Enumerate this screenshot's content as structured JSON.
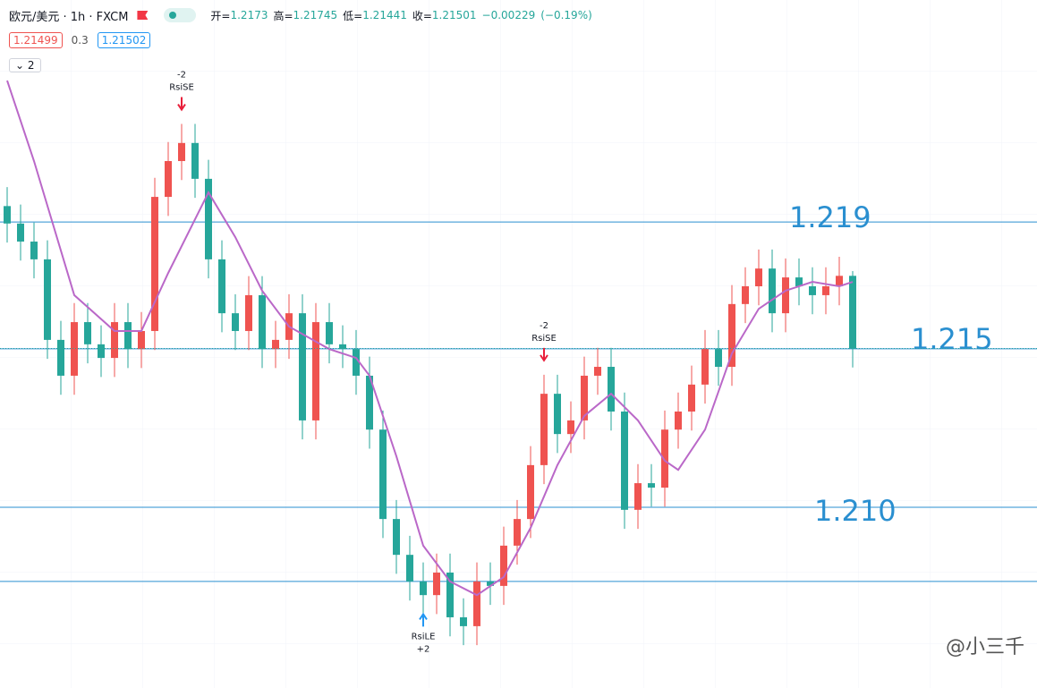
{
  "header": {
    "symbol": "欧元/美元 · 1h · FXCM",
    "open_label": "开=",
    "open": 1.2173,
    "high_label": "高=",
    "high": 1.21745,
    "low_label": "低=",
    "low": 1.21441,
    "close_label": "收=",
    "close": 1.21501,
    "change": {
      "value": -0.00229,
      "label": "−0.00229"
    },
    "change_pct": {
      "value": -0.19,
      "label": "(−0.19%)"
    },
    "bid": 1.21499,
    "spread": 0.3,
    "ask": 1.21502,
    "indicators": 2
  },
  "chart_data": {
    "type": "candlestick",
    "up_color": "#ef5350",
    "down_color": "#26a69a",
    "ylim": [
      1.2043,
      1.226
    ],
    "open": [
      1.2195,
      1.21895,
      1.21838,
      1.21782,
      1.21528,
      1.21415,
      1.21584,
      1.21514,
      1.21471,
      1.21584,
      1.21499,
      1.21556,
      1.21979,
      1.22092,
      1.22149,
      1.22036,
      1.21782,
      1.21612,
      1.21556,
      1.21669,
      1.21499,
      1.21528,
      1.21612,
      1.21274,
      1.21584,
      1.21514,
      1.21499,
      1.21415,
      1.21245,
      1.20963,
      1.2085,
      1.20766,
      1.20723,
      1.20794,
      1.20653,
      1.20625,
      1.20766,
      1.20752,
      1.20879,
      1.20963,
      1.21133,
      1.21358,
      1.21231,
      1.21274,
      1.21415,
      1.21443,
      1.21302,
      1.20992,
      1.21076,
      1.21062,
      1.21245,
      1.21302,
      1.21387,
      1.21499,
      1.21443,
      1.21641,
      1.21697,
      1.21753,
      1.21612,
      1.21725,
      1.21697,
      1.21669,
      1.21697,
      1.2173
    ],
    "high": [
      1.2201,
      1.21955,
      1.21898,
      1.21842,
      1.21588,
      1.21644,
      1.21644,
      1.21574,
      1.21644,
      1.21644,
      1.21616,
      1.22039,
      1.22152,
      1.22209,
      1.22209,
      1.22096,
      1.21842,
      1.21672,
      1.21729,
      1.21729,
      1.21588,
      1.21672,
      1.21672,
      1.21644,
      1.21644,
      1.21574,
      1.21559,
      1.21475,
      1.21305,
      1.21023,
      1.2091,
      1.20826,
      1.20854,
      1.20854,
      1.20713,
      1.20826,
      1.20826,
      1.20939,
      1.21023,
      1.21193,
      1.21418,
      1.21418,
      1.21334,
      1.21475,
      1.21503,
      1.21503,
      1.21362,
      1.21136,
      1.21136,
      1.21305,
      1.21362,
      1.21447,
      1.21559,
      1.21559,
      1.21701,
      1.21757,
      1.21813,
      1.21813,
      1.21785,
      1.21785,
      1.21757,
      1.21757,
      1.2179,
      1.21745
    ],
    "low": [
      1.21835,
      1.21778,
      1.21722,
      1.21468,
      1.21355,
      1.21355,
      1.21454,
      1.21411,
      1.21411,
      1.21439,
      1.21439,
      1.21496,
      1.21919,
      1.22032,
      1.21976,
      1.21722,
      1.21552,
      1.21496,
      1.21496,
      1.21439,
      1.21439,
      1.21468,
      1.21214,
      1.21214,
      1.21454,
      1.21439,
      1.21355,
      1.21185,
      1.20903,
      1.2079,
      1.20706,
      1.20663,
      1.20663,
      1.20593,
      1.20565,
      1.20565,
      1.20692,
      1.20692,
      1.20819,
      1.20903,
      1.21073,
      1.21171,
      1.21171,
      1.21214,
      1.21355,
      1.21242,
      1.20932,
      1.20932,
      1.21002,
      1.21002,
      1.21185,
      1.21242,
      1.21327,
      1.21383,
      1.21383,
      1.21581,
      1.21637,
      1.21552,
      1.21552,
      1.21637,
      1.21609,
      1.21609,
      1.21637,
      1.21441
    ],
    "close": [
      1.21895,
      1.21838,
      1.21782,
      1.21528,
      1.21415,
      1.21584,
      1.21514,
      1.21471,
      1.21584,
      1.21499,
      1.21556,
      1.21979,
      1.22092,
      1.22149,
      1.22036,
      1.21782,
      1.21612,
      1.21556,
      1.21669,
      1.21499,
      1.21528,
      1.21612,
      1.21274,
      1.21584,
      1.21514,
      1.21499,
      1.21415,
      1.21245,
      1.20963,
      1.2085,
      1.20766,
      1.20723,
      1.20794,
      1.20653,
      1.20625,
      1.20766,
      1.20752,
      1.20879,
      1.20963,
      1.21133,
      1.21358,
      1.21231,
      1.21274,
      1.21415,
      1.21443,
      1.21302,
      1.20992,
      1.21076,
      1.21062,
      1.21245,
      1.21302,
      1.21387,
      1.21499,
      1.21443,
      1.21641,
      1.21697,
      1.21753,
      1.21612,
      1.21725,
      1.21697,
      1.21669,
      1.21697,
      1.2173,
      1.21501
    ],
    "ma": {
      "color": "#ba68c8",
      "x": [
        0,
        2,
        5,
        8,
        10,
        12,
        15,
        17,
        19,
        21,
        24,
        26,
        27,
        29,
        31,
        33,
        35,
        37,
        39,
        41,
        43,
        45,
        47,
        49,
        50,
        52,
        54,
        56,
        58,
        60,
        62,
        63
      ],
      "values": [
        1.22346,
        1.22092,
        1.21669,
        1.21556,
        1.21556,
        1.21739,
        1.21993,
        1.21852,
        1.21683,
        1.2157,
        1.21499,
        1.21471,
        1.21415,
        1.21161,
        1.20879,
        1.20766,
        1.20723,
        1.2078,
        1.20935,
        1.21133,
        1.21288,
        1.21358,
        1.21274,
        1.21147,
        1.21118,
        1.21245,
        1.21485,
        1.21626,
        1.21683,
        1.21711,
        1.21697,
        1.21711
      ]
    },
    "levels": [
      {
        "value": 1.219,
        "label": "1.219"
      },
      {
        "value": 1.215,
        "label": "1.215"
      },
      {
        "value": 1.21,
        "label": "1.210"
      },
      {
        "value": 1.20766
      }
    ],
    "level_color": "#2a8fd0",
    "signals": [
      {
        "name": "RsiSE",
        "qty": -2
      },
      {
        "name": "RsiSE",
        "qty": -2
      },
      {
        "name": "RsiLE",
        "qty": {
          "value": 2,
          "label": "+2"
        }
      }
    ]
  },
  "watermark": "@小三千"
}
